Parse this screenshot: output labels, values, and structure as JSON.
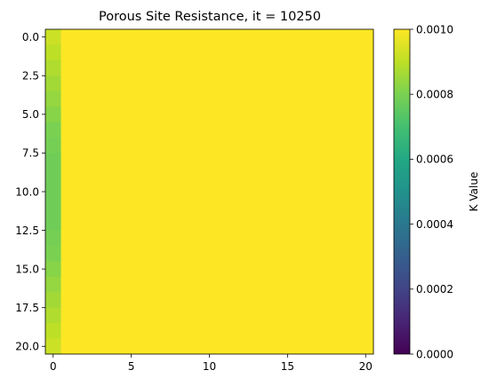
{
  "chart_data": {
    "type": "heatmap",
    "title": "Porous Site Resistance, it = 10250",
    "xlabel": "",
    "ylabel": "",
    "colorbar_label": "K Value",
    "colormap": "viridis",
    "vmin": 0.0,
    "vmax": 0.001,
    "xlim": [
      -0.5,
      20.5
    ],
    "ylim": [
      20.5,
      -0.5
    ],
    "x_ticks": [
      0,
      5,
      10,
      15,
      20
    ],
    "x_tick_labels": [
      "0",
      "5",
      "10",
      "15",
      "20"
    ],
    "y_ticks": [
      0.0,
      2.5,
      5.0,
      7.5,
      10.0,
      12.5,
      15.0,
      17.5,
      20.0
    ],
    "y_tick_labels": [
      "0.0",
      "2.5",
      "5.0",
      "7.5",
      "10.0",
      "12.5",
      "15.0",
      "17.5",
      "20.0"
    ],
    "colorbar_ticks": [
      0.0,
      0.0002,
      0.0004,
      0.0006,
      0.0008,
      0.001
    ],
    "colorbar_tick_labels": [
      "0.0000",
      "0.0002",
      "0.0004",
      "0.0006",
      "0.0008",
      "0.0010"
    ],
    "grid": false,
    "n_rows": 21,
    "n_cols": 21,
    "column0_values": [
      0.00092,
      0.0009,
      0.00088,
      0.00086,
      0.00084,
      0.00082,
      0.0008,
      0.00079,
      0.00078,
      0.00078,
      0.00078,
      0.00078,
      0.00078,
      0.00079,
      0.0008,
      0.00082,
      0.00084,
      0.00086,
      0.00088,
      0.0009,
      0.00092
    ],
    "other_columns_value": 0.001
  }
}
